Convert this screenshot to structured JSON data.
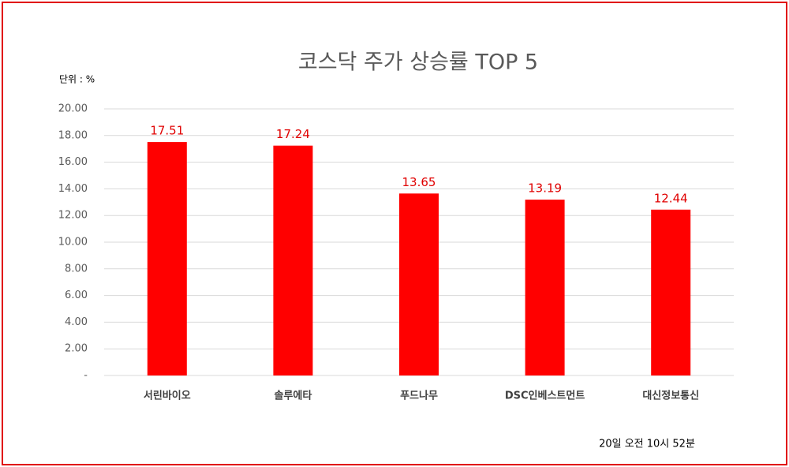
{
  "chart_data": {
    "type": "bar",
    "title": "코스닥 주가 상승률 TOP 5",
    "unit_label": "단위 : %",
    "footnote": "20일  오전 10시 52분",
    "categories": [
      "서린바이오",
      "솔루에타",
      "푸드나무",
      "DSC인베스트먼트",
      "대신정보통신"
    ],
    "values": [
      17.51,
      17.24,
      13.65,
      13.19,
      12.44
    ],
    "color": "#ff0000",
    "label_color": "#e00000",
    "ylim": [
      0,
      20
    ],
    "yticks": [
      {
        "value": 0,
        "label": "-"
      },
      {
        "value": 2,
        "label": "2.00"
      },
      {
        "value": 4,
        "label": "4.00"
      },
      {
        "value": 6,
        "label": "6.00"
      },
      {
        "value": 8,
        "label": "8.00"
      },
      {
        "value": 10,
        "label": "10.00"
      },
      {
        "value": 12,
        "label": "12.00"
      },
      {
        "value": 14,
        "label": "14.00"
      },
      {
        "value": 16,
        "label": "16.00"
      },
      {
        "value": 18,
        "label": "18.00"
      },
      {
        "value": 20,
        "label": "20.00"
      }
    ],
    "grid": true
  }
}
